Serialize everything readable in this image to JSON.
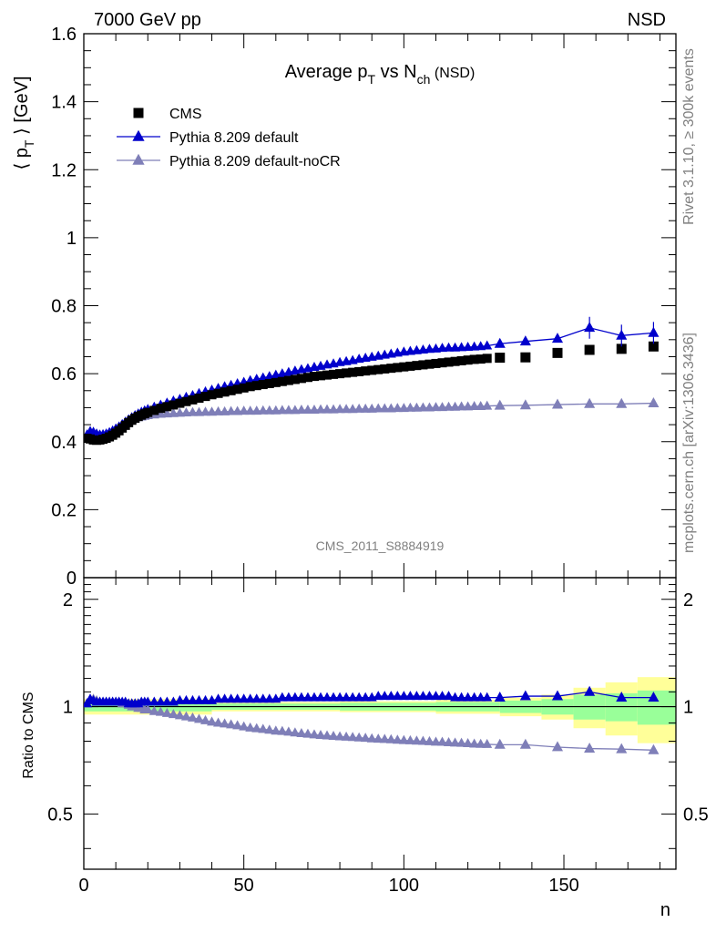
{
  "header": {
    "left": "7000 GeV pp",
    "right": "NSD"
  },
  "side_labels": {
    "top": "Rivet 3.1.10, ≥ 300k events",
    "bottom": "mcplots.cern.ch [arXiv:1306.3436]"
  },
  "watermark": "CMS_2011_S8884919",
  "chart_data": [
    {
      "type": "scatter",
      "panel": "main",
      "title": {
        "main": "Average p",
        "sub1": "T",
        "mid": " vs N",
        "sub2": "ch",
        "tail": " (NSD)"
      },
      "ylabel": {
        "open": "⟨ p",
        "sub": "T",
        "close": " ⟩ [GeV]"
      },
      "xlim": [
        0,
        185
      ],
      "ylim": [
        0,
        1.6
      ],
      "yticks": [
        "0",
        "0.2",
        "0.4",
        "0.6",
        "0.8",
        "1",
        "1.2",
        "1.4",
        "1.6"
      ],
      "legend_position": "top-left",
      "series": [
        {
          "name": "CMS",
          "color": "#000000",
          "marker": "square",
          "x": [
            1,
            2,
            3,
            4,
            5,
            6,
            7,
            8,
            9,
            10,
            11,
            12,
            13,
            14,
            15,
            16,
            17,
            18,
            19,
            20,
            22,
            24,
            26,
            28,
            30,
            32,
            34,
            36,
            38,
            40,
            42,
            44,
            46,
            48,
            50,
            52,
            54,
            56,
            58,
            60,
            62,
            64,
            66,
            68,
            70,
            72,
            74,
            76,
            78,
            80,
            82,
            84,
            86,
            88,
            90,
            92,
            94,
            96,
            98,
            100,
            102,
            104,
            106,
            108,
            110,
            112,
            114,
            116,
            118,
            120,
            122,
            124,
            126,
            130,
            138,
            148,
            158,
            168,
            178
          ],
          "y": [
            0.41,
            0.408,
            0.405,
            0.404,
            0.405,
            0.407,
            0.41,
            0.414,
            0.419,
            0.425,
            0.432,
            0.44,
            0.448,
            0.456,
            0.463,
            0.469,
            0.474,
            0.478,
            0.482,
            0.486,
            0.492,
            0.498,
            0.503,
            0.508,
            0.513,
            0.518,
            0.523,
            0.528,
            0.533,
            0.538,
            0.542,
            0.546,
            0.55,
            0.554,
            0.558,
            0.562,
            0.565,
            0.568,
            0.571,
            0.574,
            0.577,
            0.58,
            0.583,
            0.586,
            0.589,
            0.592,
            0.594,
            0.596,
            0.598,
            0.6,
            0.602,
            0.604,
            0.606,
            0.608,
            0.61,
            0.612,
            0.614,
            0.616,
            0.618,
            0.62,
            0.622,
            0.624,
            0.626,
            0.628,
            0.63,
            0.632,
            0.634,
            0.636,
            0.638,
            0.64,
            0.642,
            0.643,
            0.645,
            0.647,
            0.648,
            0.661,
            0.67,
            0.673,
            0.68
          ]
        },
        {
          "name": "Pythia 8.209 default",
          "color": "#0000cc",
          "marker": "triangle",
          "x": [
            1,
            2,
            3,
            4,
            5,
            6,
            7,
            8,
            9,
            10,
            11,
            12,
            13,
            14,
            15,
            16,
            17,
            18,
            19,
            20,
            22,
            24,
            26,
            28,
            30,
            32,
            34,
            36,
            38,
            40,
            42,
            44,
            46,
            48,
            50,
            52,
            54,
            56,
            58,
            60,
            62,
            64,
            66,
            68,
            70,
            72,
            74,
            76,
            78,
            80,
            82,
            84,
            86,
            88,
            90,
            92,
            94,
            96,
            98,
            100,
            102,
            104,
            106,
            108,
            110,
            112,
            114,
            116,
            118,
            120,
            122,
            124,
            126,
            130,
            138,
            148,
            158,
            168,
            178
          ],
          "y": [
            0.42,
            0.43,
            0.428,
            0.423,
            0.42,
            0.421,
            0.423,
            0.427,
            0.432,
            0.438,
            0.444,
            0.451,
            0.458,
            0.465,
            0.471,
            0.477,
            0.482,
            0.487,
            0.491,
            0.495,
            0.502,
            0.508,
            0.514,
            0.52,
            0.525,
            0.531,
            0.536,
            0.542,
            0.547,
            0.552,
            0.557,
            0.562,
            0.566,
            0.571,
            0.575,
            0.58,
            0.584,
            0.588,
            0.592,
            0.596,
            0.6,
            0.604,
            0.608,
            0.612,
            0.615,
            0.619,
            0.622,
            0.626,
            0.629,
            0.633,
            0.636,
            0.639,
            0.643,
            0.646,
            0.649,
            0.652,
            0.655,
            0.658,
            0.661,
            0.664,
            0.666,
            0.668,
            0.67,
            0.672,
            0.673,
            0.675,
            0.676,
            0.676,
            0.677,
            0.678,
            0.679,
            0.68,
            0.682,
            0.688,
            0.695,
            0.703,
            0.735,
            0.712,
            0.72
          ]
        },
        {
          "name": "Pythia 8.209 default-noCR",
          "color": "#7f7fb8",
          "marker": "triangle",
          "x": [
            1,
            2,
            3,
            4,
            5,
            6,
            7,
            8,
            9,
            10,
            11,
            12,
            13,
            14,
            15,
            16,
            17,
            18,
            19,
            20,
            22,
            24,
            26,
            28,
            30,
            32,
            34,
            36,
            38,
            40,
            42,
            44,
            46,
            48,
            50,
            52,
            54,
            56,
            58,
            60,
            62,
            64,
            66,
            68,
            70,
            72,
            74,
            76,
            78,
            80,
            82,
            84,
            86,
            88,
            90,
            92,
            94,
            96,
            98,
            100,
            102,
            104,
            106,
            108,
            110,
            112,
            114,
            116,
            118,
            120,
            122,
            124,
            126,
            130,
            138,
            148,
            158,
            168,
            178
          ],
          "y": [
            0.42,
            0.43,
            0.425,
            0.421,
            0.419,
            0.42,
            0.422,
            0.426,
            0.431,
            0.437,
            0.443,
            0.449,
            0.455,
            0.46,
            0.464,
            0.468,
            0.471,
            0.473,
            0.475,
            0.477,
            0.479,
            0.481,
            0.482,
            0.483,
            0.484,
            0.485,
            0.486,
            0.486,
            0.487,
            0.487,
            0.488,
            0.488,
            0.489,
            0.489,
            0.49,
            0.49,
            0.49,
            0.491,
            0.491,
            0.491,
            0.492,
            0.492,
            0.492,
            0.493,
            0.493,
            0.493,
            0.494,
            0.494,
            0.494,
            0.495,
            0.495,
            0.495,
            0.496,
            0.496,
            0.496,
            0.497,
            0.497,
            0.497,
            0.498,
            0.498,
            0.499,
            0.499,
            0.5,
            0.5,
            0.501,
            0.501,
            0.502,
            0.502,
            0.503,
            0.503,
            0.504,
            0.504,
            0.505,
            0.506,
            0.507,
            0.509,
            0.511,
            0.511,
            0.513
          ]
        }
      ]
    },
    {
      "type": "scatter",
      "panel": "ratio",
      "ylabel": "Ratio to CMS",
      "xlabel": "n",
      "xlim": [
        0,
        185
      ],
      "ylim": [
        0.35,
        2.3
      ],
      "yscale": "log",
      "xticks": [
        "0",
        "50",
        "100",
        "150"
      ],
      "yticks": [
        "0.5",
        "1",
        "2"
      ],
      "reference_line": 1,
      "uncertainty_bands": {
        "inner_color": "#99ff99",
        "outer_color": "#ffff99",
        "x_edges": [
          0,
          40,
          80,
          110,
          130,
          143,
          153,
          163,
          173,
          185
        ],
        "inner_half_width": [
          0.03,
          0.02,
          0.025,
          0.03,
          0.04,
          0.05,
          0.08,
          0.09,
          0.11,
          0.12
        ],
        "outer_half_width": [
          0.05,
          0.03,
          0.035,
          0.045,
          0.06,
          0.08,
          0.13,
          0.17,
          0.21,
          0.25
        ]
      },
      "series": [
        {
          "name": "Pythia 8.209 default",
          "color": "#0000cc",
          "marker": "triangle",
          "x": [
            1,
            2,
            3,
            4,
            5,
            6,
            7,
            8,
            9,
            10,
            11,
            12,
            13,
            14,
            15,
            16,
            17,
            18,
            19,
            20,
            22,
            24,
            26,
            28,
            30,
            32,
            34,
            36,
            38,
            40,
            42,
            44,
            46,
            48,
            50,
            52,
            54,
            56,
            58,
            60,
            62,
            64,
            66,
            68,
            70,
            72,
            74,
            76,
            78,
            80,
            82,
            84,
            86,
            88,
            90,
            92,
            94,
            96,
            98,
            100,
            102,
            104,
            106,
            108,
            110,
            112,
            114,
            116,
            118,
            120,
            122,
            124,
            126,
            130,
            138,
            148,
            158,
            168,
            178
          ],
          "y": [
            1.02,
            1.05,
            1.04,
            1.03,
            1.03,
            1.03,
            1.03,
            1.03,
            1.03,
            1.03,
            1.03,
            1.03,
            1.03,
            1.02,
            1.02,
            1.02,
            1.02,
            1.03,
            1.03,
            1.03,
            1.03,
            1.03,
            1.03,
            1.03,
            1.04,
            1.04,
            1.04,
            1.04,
            1.04,
            1.04,
            1.05,
            1.05,
            1.05,
            1.05,
            1.05,
            1.05,
            1.05,
            1.05,
            1.05,
            1.05,
            1.06,
            1.06,
            1.06,
            1.06,
            1.06,
            1.06,
            1.06,
            1.06,
            1.06,
            1.06,
            1.06,
            1.06,
            1.06,
            1.06,
            1.06,
            1.07,
            1.07,
            1.07,
            1.07,
            1.07,
            1.07,
            1.07,
            1.07,
            1.07,
            1.07,
            1.07,
            1.07,
            1.06,
            1.06,
            1.06,
            1.06,
            1.06,
            1.06,
            1.06,
            1.07,
            1.07,
            1.1,
            1.06,
            1.06
          ]
        },
        {
          "name": "Pythia 8.209 default-noCR",
          "color": "#7f7fb8",
          "marker": "triangle",
          "x": [
            1,
            2,
            3,
            4,
            5,
            6,
            7,
            8,
            9,
            10,
            11,
            12,
            13,
            14,
            15,
            16,
            17,
            18,
            19,
            20,
            22,
            24,
            26,
            28,
            30,
            32,
            34,
            36,
            38,
            40,
            42,
            44,
            46,
            48,
            50,
            52,
            54,
            56,
            58,
            60,
            62,
            64,
            66,
            68,
            70,
            72,
            74,
            76,
            78,
            80,
            82,
            84,
            86,
            88,
            90,
            92,
            94,
            96,
            98,
            100,
            102,
            104,
            106,
            108,
            110,
            112,
            114,
            116,
            118,
            120,
            122,
            124,
            126,
            130,
            138,
            148,
            158,
            168,
            178
          ],
          "y": [
            1.02,
            1.05,
            1.05,
            1.04,
            1.03,
            1.03,
            1.03,
            1.03,
            1.03,
            1.03,
            1.03,
            1.02,
            1.02,
            1.01,
            1.0,
            1.0,
            0.99,
            0.99,
            0.98,
            0.98,
            0.97,
            0.965,
            0.958,
            0.951,
            0.944,
            0.937,
            0.93,
            0.922,
            0.914,
            0.906,
            0.9,
            0.895,
            0.89,
            0.885,
            0.878,
            0.872,
            0.868,
            0.864,
            0.86,
            0.855,
            0.853,
            0.849,
            0.845,
            0.841,
            0.838,
            0.834,
            0.831,
            0.829,
            0.826,
            0.824,
            0.822,
            0.82,
            0.818,
            0.816,
            0.813,
            0.811,
            0.81,
            0.808,
            0.806,
            0.804,
            0.803,
            0.801,
            0.8,
            0.798,
            0.796,
            0.795,
            0.793,
            0.791,
            0.79,
            0.788,
            0.786,
            0.785,
            0.784,
            0.782,
            0.782,
            0.77,
            0.763,
            0.76,
            0.755
          ]
        }
      ]
    }
  ]
}
